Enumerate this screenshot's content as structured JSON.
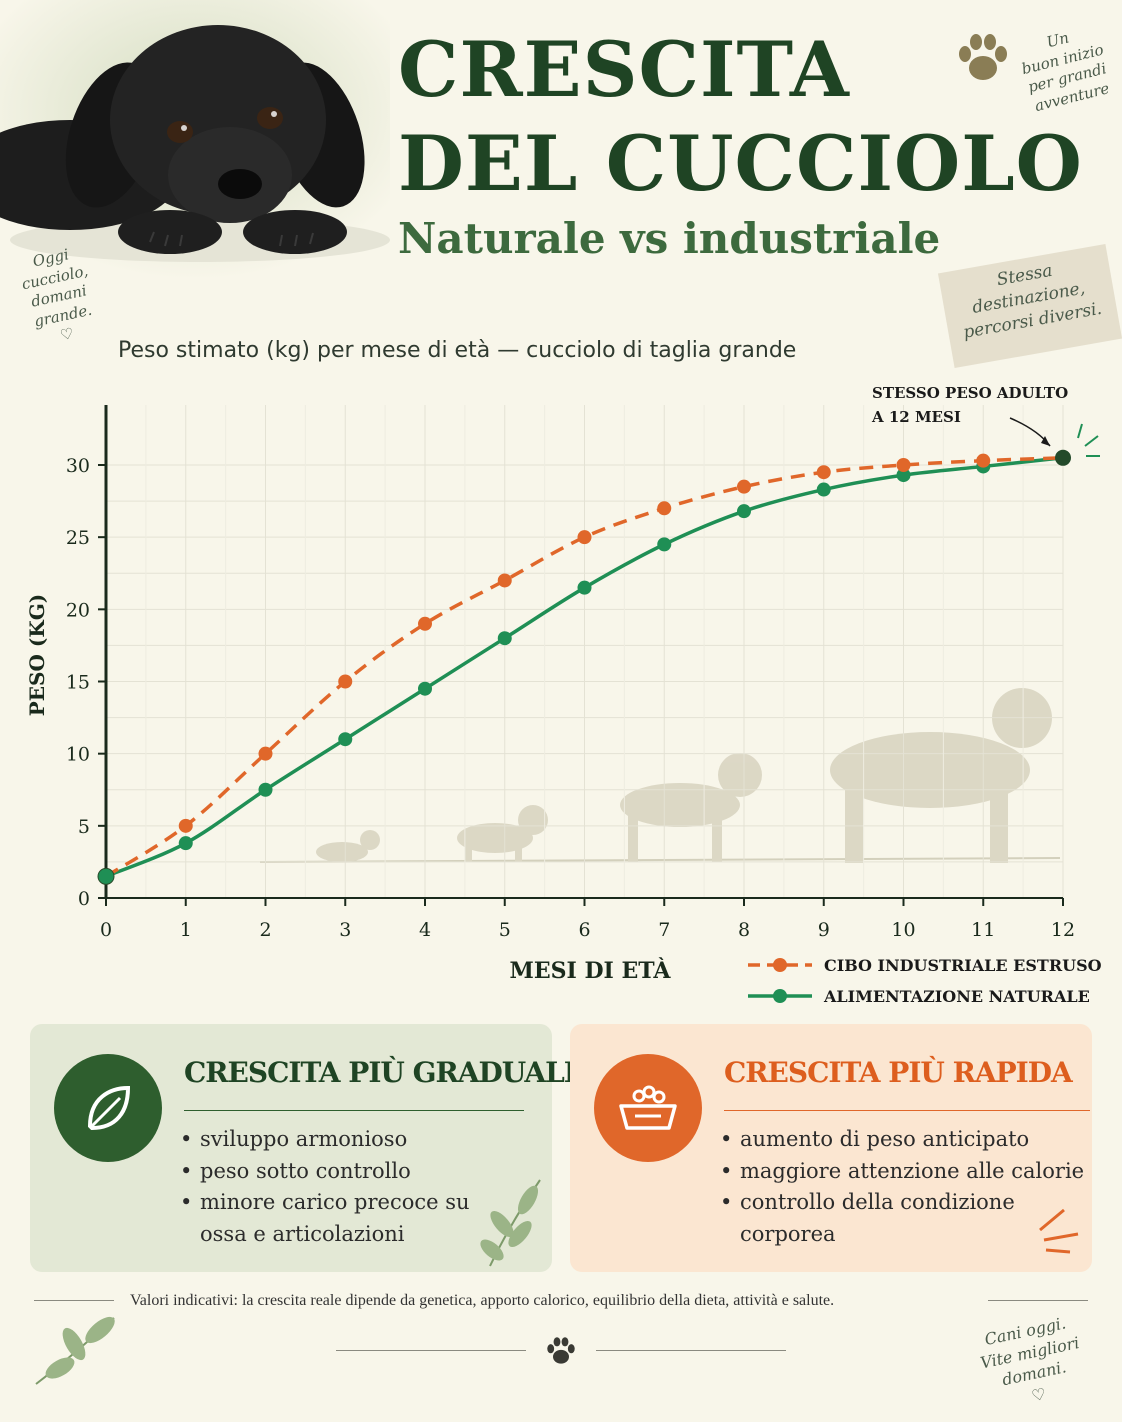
{
  "header": {
    "title_line1": "CRESCITA",
    "title_line2": "DEL CUCCIOLO",
    "subtitle": "Naturale vs industriale"
  },
  "notes": {
    "left": "Oggi\ncucciolo,\ndomani\ngrande.\n♡",
    "top_right": "Un\nbuon inizio\nper grandi\navventure",
    "middle_right": "Stessa\ndestinazione,\npercorsi diversi.",
    "bottom_right": "Cani oggi.\nVite migliori domani.\n♡"
  },
  "chart_caption": "Peso stimato (kg) per mese di età — cucciolo di taglia grande",
  "chart_data": {
    "type": "line",
    "xlabel": "MESI DI ETÀ",
    "ylabel": "PESO (KG)",
    "x": [
      0,
      1,
      2,
      3,
      4,
      5,
      6,
      7,
      8,
      9,
      10,
      11,
      12
    ],
    "xlim": [
      0,
      12
    ],
    "ylim": [
      0,
      32
    ],
    "yticks": [
      0,
      5,
      10,
      15,
      20,
      25,
      30
    ],
    "grid": true,
    "legend_position": "bottom-right",
    "series": [
      {
        "name": "CIBO INDUSTRIALE ESTRUSO",
        "color": "#e0672a",
        "style": "dashed",
        "values": [
          1.5,
          5,
          10,
          15,
          19,
          22,
          25,
          27,
          28.5,
          29.5,
          30,
          30.3,
          30.5
        ]
      },
      {
        "name": "ALIMENTAZIONE NATURALE",
        "color": "#1f8f55",
        "style": "solid",
        "values": [
          1.5,
          3.8,
          7.5,
          11,
          14.5,
          18,
          21.5,
          24.5,
          26.8,
          28.3,
          29.3,
          29.9,
          30.5
        ]
      }
    ],
    "annotation": "STESSO PESO ADULTO\nA 12 MESI"
  },
  "panels": {
    "natural": {
      "title": "CRESCITA PIÙ GRADUALE",
      "color": "#2e5e2e",
      "icon": "leaf-icon",
      "items": [
        "sviluppo armonioso",
        "peso sotto controllo",
        "minore carico precoce su ossa e articolazioni"
      ]
    },
    "industrial": {
      "title": "CRESCITA PIÙ RAPIDA",
      "color": "#e0672a",
      "icon": "food-bowl-icon",
      "items": [
        "aumento di peso anticipato",
        "maggiore attenzione alle calorie",
        "controllo della condizione corporea"
      ]
    }
  },
  "footnote": "Valori indicativi: la crescita reale dipende da genetica, apporto calorico, equilibrio della dieta, attività e salute."
}
